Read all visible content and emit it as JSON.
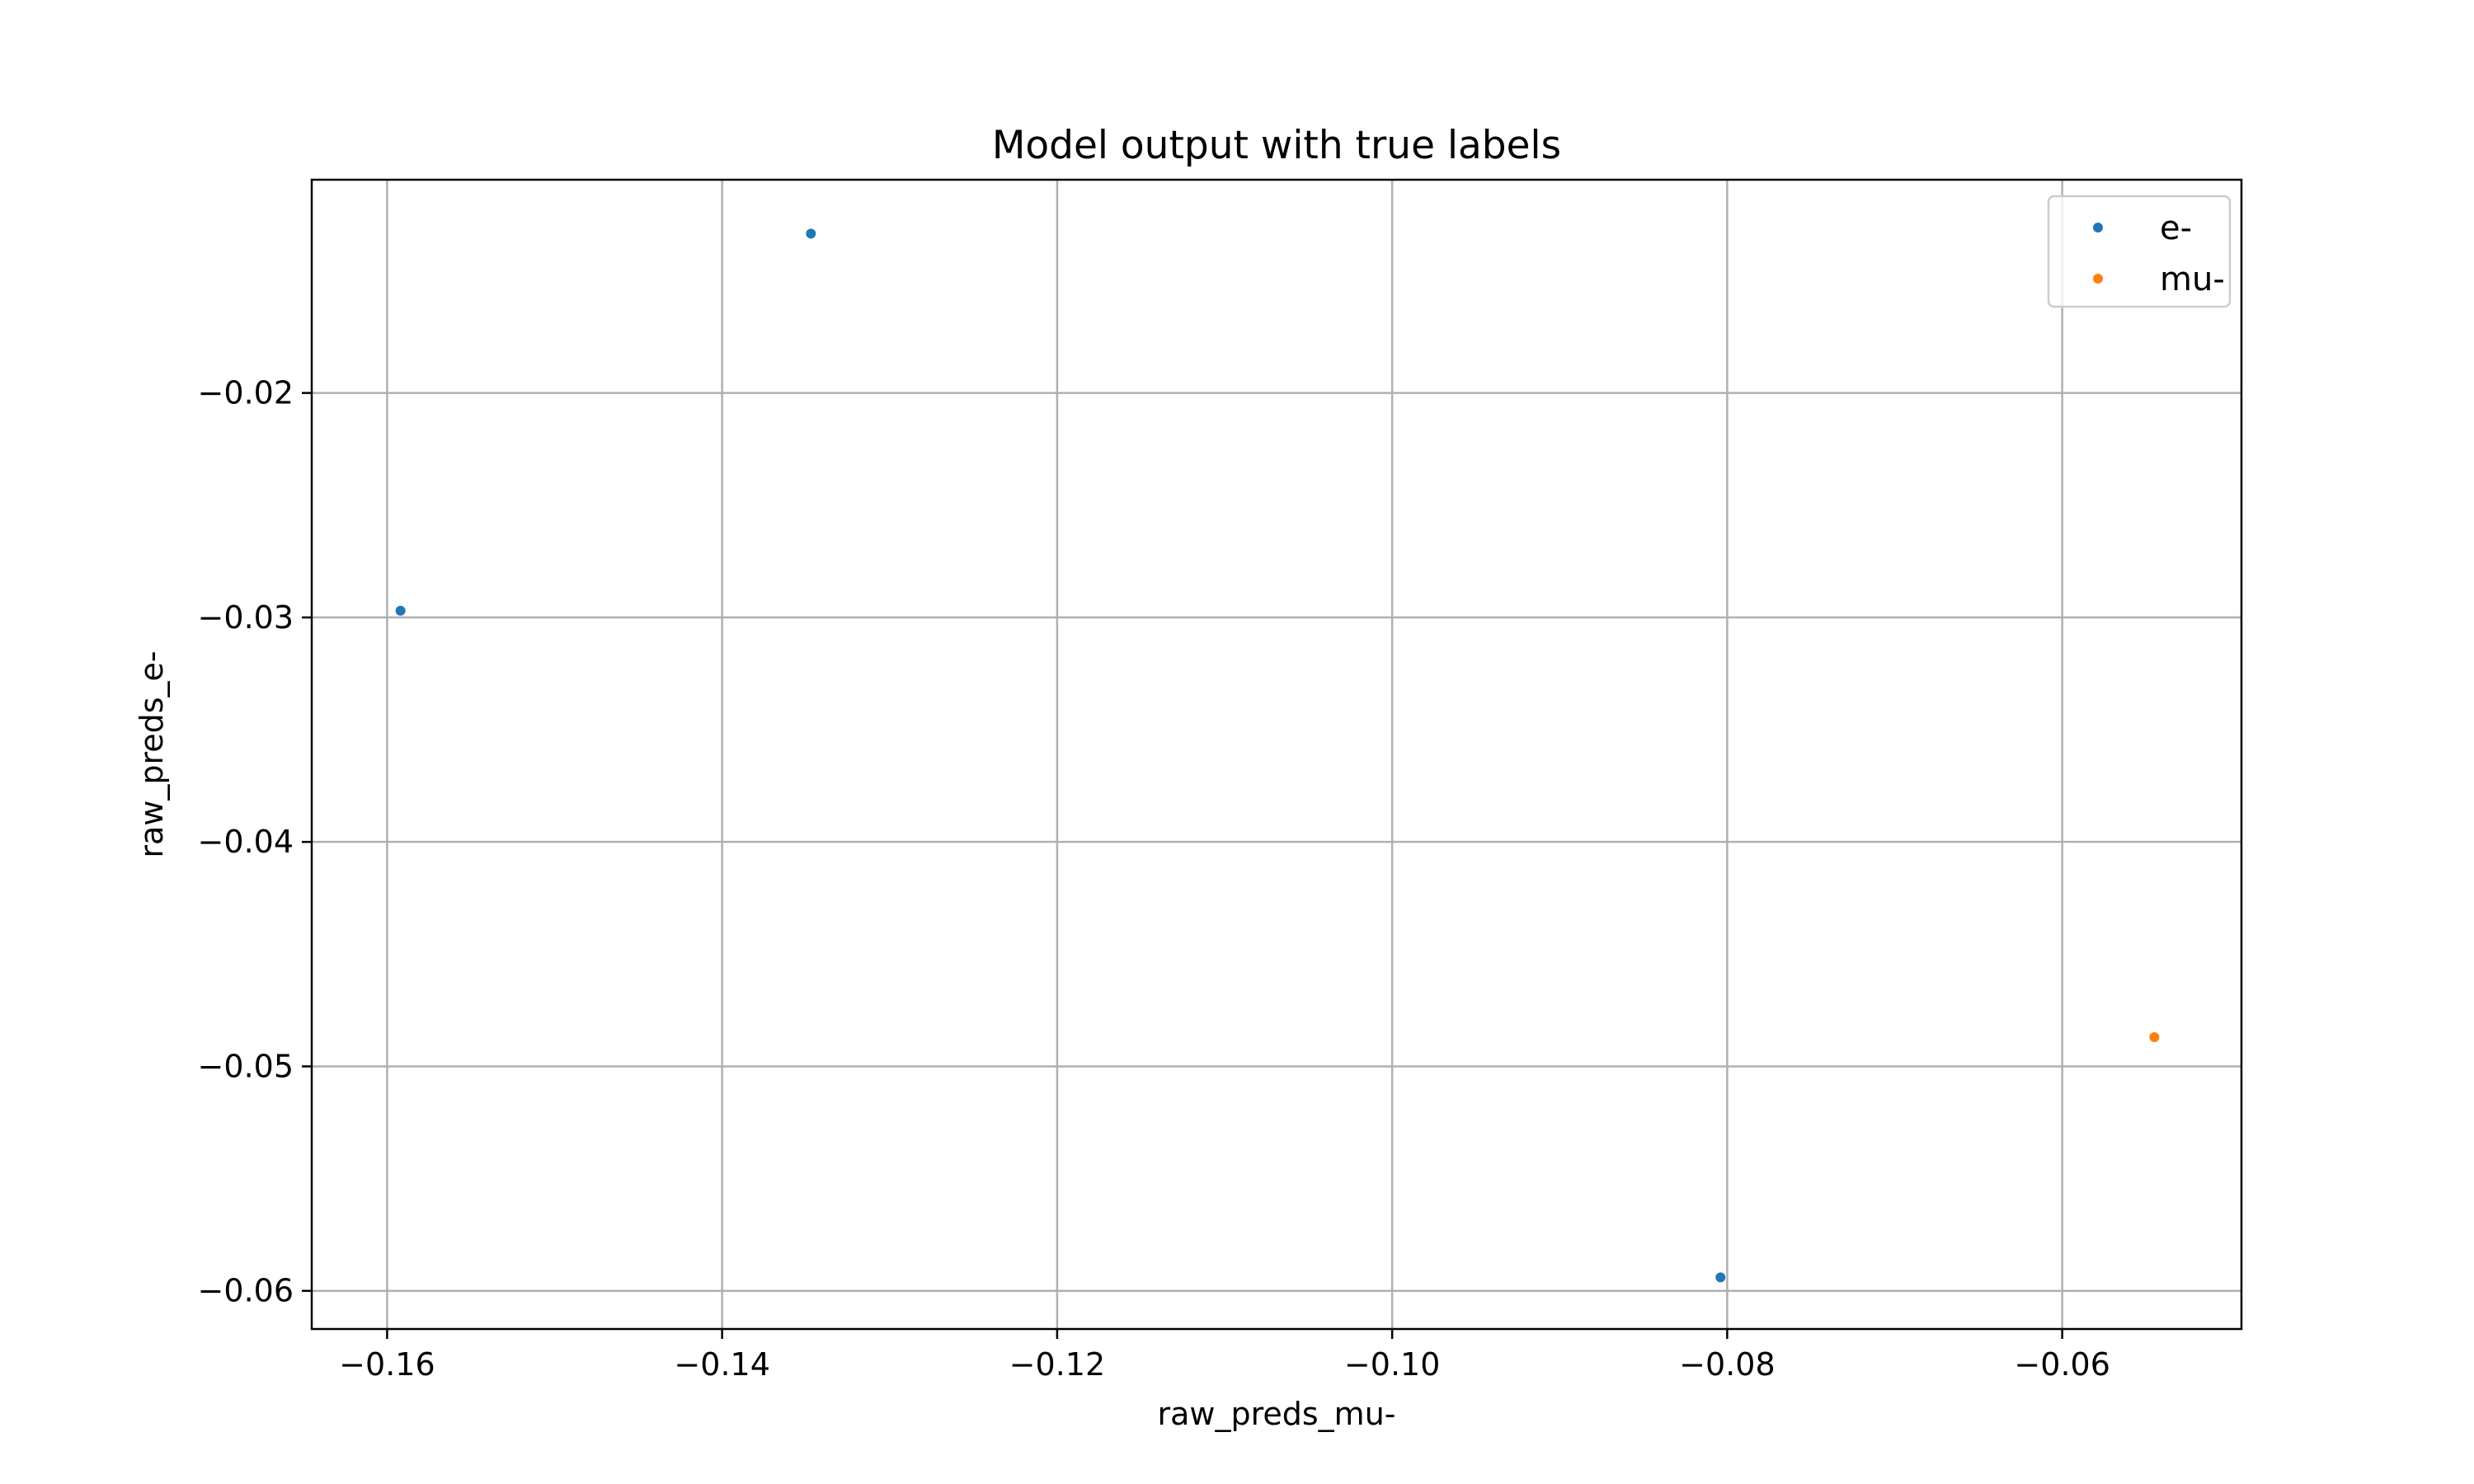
{
  "chart_data": {
    "type": "scatter",
    "title": "Model output with true labels",
    "xlabel": "raw_preds_mu-",
    "ylabel": "raw_preds_e-",
    "xlim": [
      -0.1645,
      -0.0493
    ],
    "ylim": [
      -0.0617,
      -0.0105
    ],
    "x_ticks": [
      -0.16,
      -0.14,
      -0.12,
      -0.1,
      -0.08,
      -0.06
    ],
    "x_tick_labels": [
      "−0.16",
      "−0.14",
      "−0.12",
      "−0.10",
      "−0.08",
      "−0.06"
    ],
    "y_ticks": [
      -0.02,
      -0.03,
      -0.04,
      -0.05,
      -0.06
    ],
    "y_tick_labels": [
      "−0.02",
      "−0.03",
      "−0.04",
      "−0.05",
      "−0.06"
    ],
    "grid": true,
    "legend_position": "top-right",
    "series": [
      {
        "name": "e-",
        "color": "#1f77b4",
        "points": [
          {
            "x": -0.1347,
            "y": -0.0129
          },
          {
            "x": -0.1592,
            "y": -0.0297
          },
          {
            "x": -0.0804,
            "y": -0.0594
          }
        ]
      },
      {
        "name": "mu-",
        "color": "#ff7f0e",
        "points": [
          {
            "x": -0.0545,
            "y": -0.0487
          }
        ]
      }
    ]
  }
}
